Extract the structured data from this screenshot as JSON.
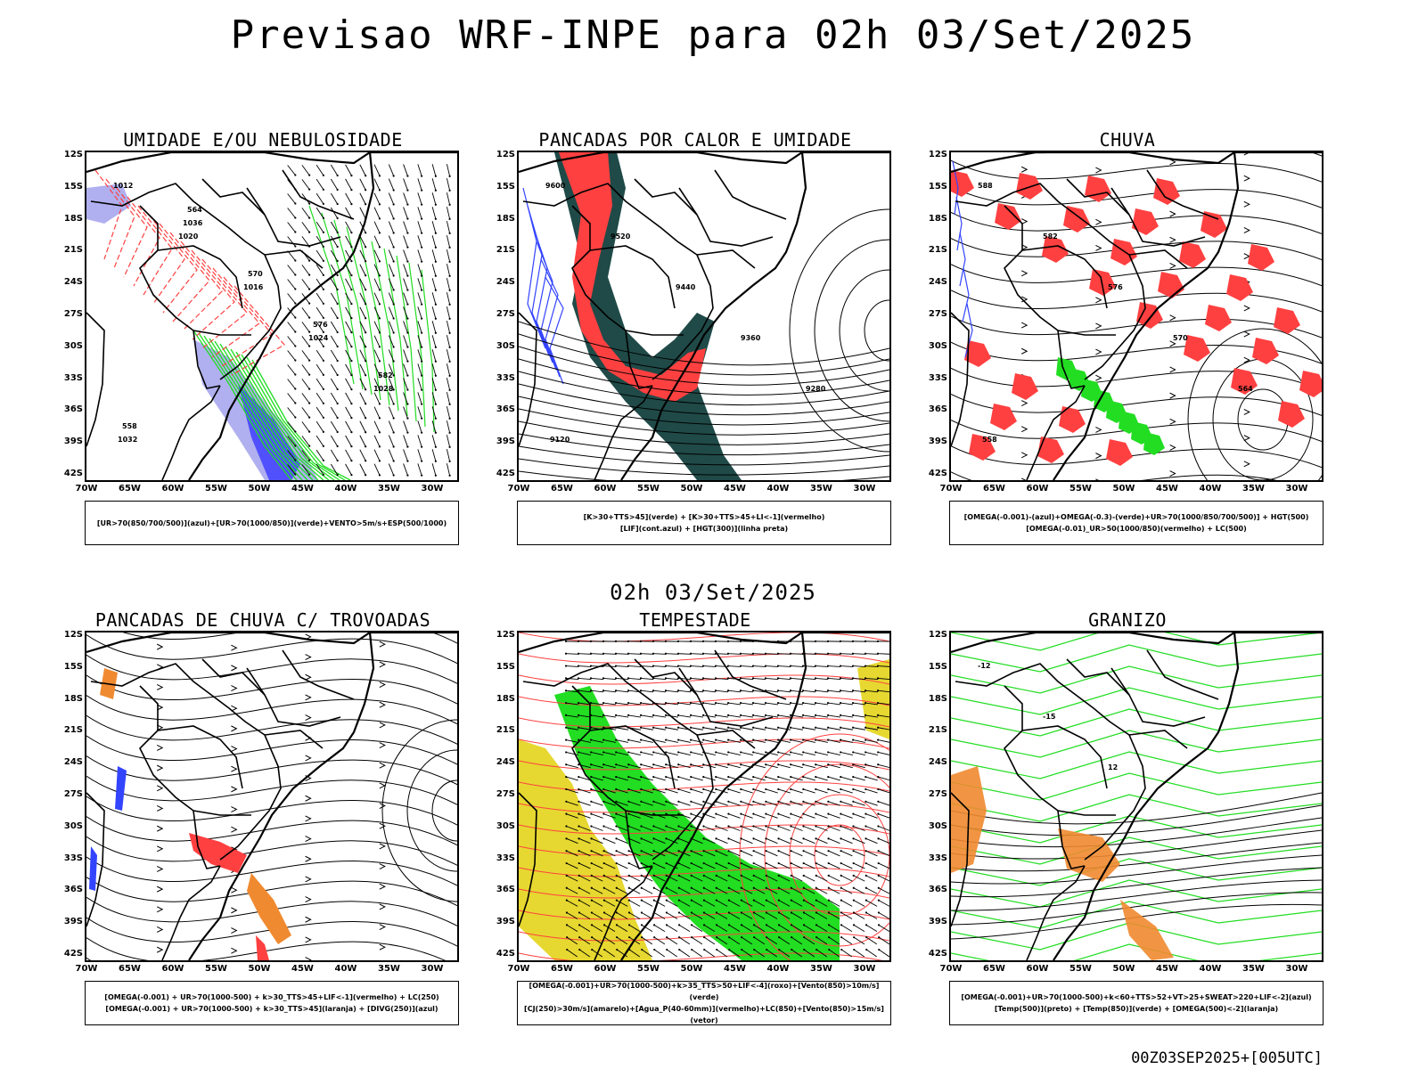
{
  "main_title": "Previsao WRF-INPE  para 02h 03/Set/2025",
  "mid_title": "02h 03/Set/2025",
  "footer": "00Z03SEP2025+[005UTC]",
  "lat_ticks": [
    "12S",
    "15S",
    "18S",
    "21S",
    "24S",
    "27S",
    "30S",
    "33S",
    "36S",
    "39S",
    "42S"
  ],
  "lon_ticks": [
    "70W",
    "65W",
    "60W",
    "55W",
    "50W",
    "45W",
    "40W",
    "35W",
    "30W"
  ],
  "colors": {
    "green": "#22dd22",
    "red": "#ff4040",
    "blue": "#3344ff",
    "lavender": "#b0b0f0",
    "darkteal": "#1f4a48",
    "yellow": "#e6d830",
    "orange": "#f08a30",
    "blue_fill": "#4040ff"
  },
  "panels": [
    {
      "title": "UMIDADE E/OU NEBULOSIDADE",
      "legend": [
        "[UR>70(850/700/500)](azul)+[UR>70(1000/850)](verde)+VENTO>5m/s+ESP(500/1000)"
      ],
      "contour_labels": [
        "1012",
        "1020",
        "1016",
        "1024",
        "1028",
        "1032",
        "1036",
        "570",
        "576",
        "582",
        "558",
        "564"
      ]
    },
    {
      "title": "PANCADAS POR CALOR E UMIDADE",
      "legend": [
        "[K>30+TTS>45](verde) + [K>30+TTS>45+LI<-1](vermelho)",
        "[LIF](cont.azul) + [HGT(300)](linha preta)"
      ],
      "contour_labels": [
        "9600",
        "9520",
        "9440",
        "9360",
        "9280",
        "9120"
      ]
    },
    {
      "title": "CHUVA",
      "legend": [
        "[OMEGA(-0.001)-(azul)+OMEGA(-0.3)-(verde)+UR>70(1000/850/700/500)] + HGT(500)",
        "[OMEGA(-0.01)_UR>50(1000/850)(vermelho) + LC(500)"
      ],
      "contour_labels": [
        "588",
        "582",
        "576",
        "570",
        "564",
        "558"
      ]
    },
    {
      "title": "PANCADAS DE CHUVA C/ TROVOADAS",
      "legend": [
        "[OMEGA(-0.001) + UR>70(1000-500) + k>30_TTS>45+LIF<-1](vermelho) + LC(250)",
        "[OMEGA(-0.001) + UR>70(1000-500) + k>30_TTS>45](laranja) + [DIVG(250)](azul)"
      ],
      "contour_labels": []
    },
    {
      "title": "TEMPESTADE",
      "legend": [
        "[OMEGA(-0.001)+UR>70(1000-500)+k>35_TTS>50+LIF<-4](roxo)+[Vento(850)>10m/s](verde)",
        "[CJ(250)>30m/s](amarelo)+[Agua_P(40-60mm)](vermelho)+LC(850)+[Vento(850)>15m/s](vetor)"
      ],
      "contour_labels": []
    },
    {
      "title": "GRANIZO",
      "legend": [
        "[OMEGA(-0.001)+UR>70(1000-500)+k<60+TTS>52+VT>25+SWEAT>220+LIF<-2](azul)",
        "[Temp(500)](preto) + [Temp(850)](verde) + [OMEGA(500)<-2](laranja)"
      ],
      "contour_labels": [
        "-12",
        "-15",
        "12"
      ]
    }
  ]
}
